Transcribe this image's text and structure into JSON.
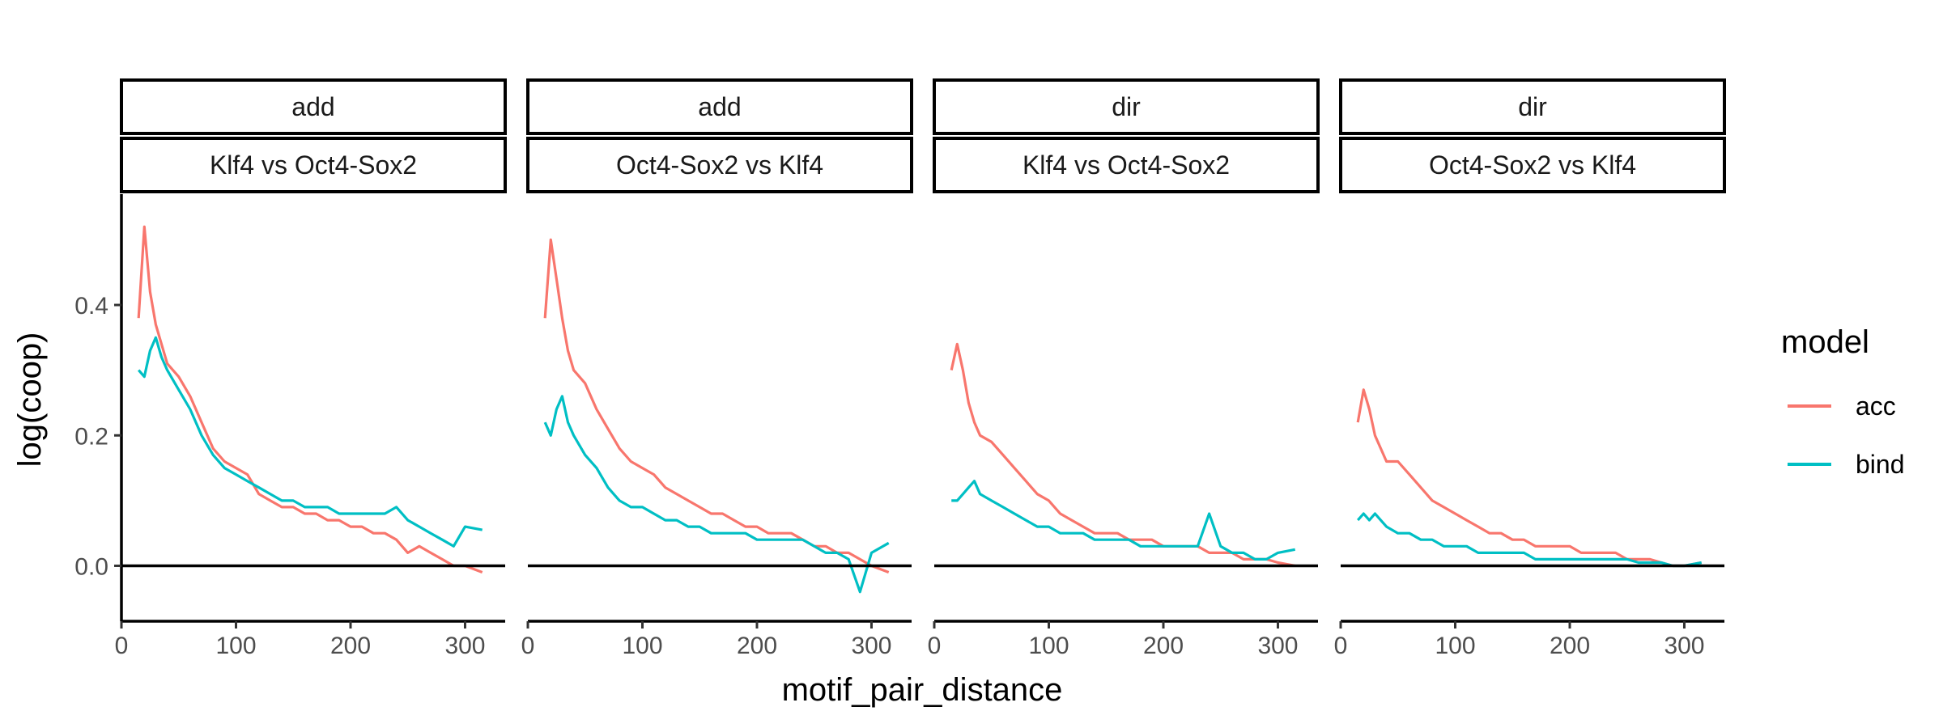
{
  "chart_data": {
    "type": "line",
    "xlabel": "motif_pair_distance",
    "ylabel": "log(coop)",
    "xlim": [
      0,
      335
    ],
    "ylim": [
      -0.085,
      0.57
    ],
    "xticks": [
      "0",
      "100",
      "200",
      "300"
    ],
    "yticks": [
      "0.0",
      "0.2",
      "0.4"
    ],
    "hline": 0,
    "grid": false,
    "legend": {
      "title": "model",
      "position": "right",
      "entries": [
        {
          "name": "acc",
          "color": "#F8766D"
        },
        {
          "name": "bind",
          "color": "#00BFC4"
        }
      ]
    },
    "facets": [
      {
        "strip_top": "add",
        "strip_bottom": "Klf4 vs Oct4-Sox2",
        "series": [
          {
            "name": "acc",
            "color": "#F8766D",
            "x": [
              15,
              20,
              25,
              30,
              35,
              40,
              50,
              60,
              70,
              80,
              90,
              100,
              110,
              120,
              130,
              140,
              150,
              160,
              170,
              180,
              190,
              200,
              210,
              220,
              230,
              240,
              250,
              260,
              270,
              280,
              290,
              300,
              315
            ],
            "y": [
              0.38,
              0.52,
              0.42,
              0.37,
              0.34,
              0.31,
              0.29,
              0.26,
              0.22,
              0.18,
              0.16,
              0.15,
              0.14,
              0.11,
              0.1,
              0.09,
              0.09,
              0.08,
              0.08,
              0.07,
              0.07,
              0.06,
              0.06,
              0.05,
              0.05,
              0.04,
              0.02,
              0.03,
              0.02,
              0.01,
              0,
              0,
              -0.01
            ]
          },
          {
            "name": "bind",
            "color": "#00BFC4",
            "x": [
              15,
              20,
              25,
              30,
              35,
              40,
              50,
              60,
              70,
              80,
              90,
              100,
              110,
              120,
              130,
              140,
              150,
              160,
              170,
              180,
              190,
              200,
              210,
              220,
              230,
              240,
              250,
              260,
              270,
              280,
              290,
              300,
              315
            ],
            "y": [
              0.3,
              0.29,
              0.33,
              0.35,
              0.32,
              0.3,
              0.27,
              0.24,
              0.2,
              0.17,
              0.15,
              0.14,
              0.13,
              0.12,
              0.11,
              0.1,
              0.1,
              0.09,
              0.09,
              0.09,
              0.08,
              0.08,
              0.08,
              0.08,
              0.08,
              0.09,
              0.07,
              0.06,
              0.05,
              0.04,
              0.03,
              0.06,
              0.055
            ]
          }
        ]
      },
      {
        "strip_top": "add",
        "strip_bottom": "Oct4-Sox2 vs Klf4",
        "series": [
          {
            "name": "acc",
            "color": "#F8766D",
            "x": [
              15,
              20,
              25,
              30,
              35,
              40,
              50,
              60,
              70,
              80,
              90,
              100,
              110,
              120,
              130,
              140,
              150,
              160,
              170,
              180,
              190,
              200,
              210,
              220,
              230,
              240,
              250,
              260,
              270,
              280,
              290,
              300,
              315
            ],
            "y": [
              0.38,
              0.5,
              0.44,
              0.38,
              0.33,
              0.3,
              0.28,
              0.24,
              0.21,
              0.18,
              0.16,
              0.15,
              0.14,
              0.12,
              0.11,
              0.1,
              0.09,
              0.08,
              0.08,
              0.07,
              0.06,
              0.06,
              0.05,
              0.05,
              0.05,
              0.04,
              0.03,
              0.03,
              0.02,
              0.02,
              0.01,
              0,
              -0.01
            ]
          },
          {
            "name": "bind",
            "color": "#00BFC4",
            "x": [
              15,
              20,
              25,
              30,
              35,
              40,
              50,
              60,
              70,
              80,
              90,
              100,
              110,
              120,
              130,
              140,
              150,
              160,
              170,
              180,
              190,
              200,
              210,
              220,
              230,
              240,
              250,
              260,
              270,
              280,
              290,
              300,
              315
            ],
            "y": [
              0.22,
              0.2,
              0.24,
              0.26,
              0.22,
              0.2,
              0.17,
              0.15,
              0.12,
              0.1,
              0.09,
              0.09,
              0.08,
              0.07,
              0.07,
              0.06,
              0.06,
              0.05,
              0.05,
              0.05,
              0.05,
              0.04,
              0.04,
              0.04,
              0.04,
              0.04,
              0.03,
              0.02,
              0.02,
              0.01,
              -0.04,
              0.02,
              0.035
            ]
          }
        ]
      },
      {
        "strip_top": "dir",
        "strip_bottom": "Klf4 vs Oct4-Sox2",
        "series": [
          {
            "name": "acc",
            "color": "#F8766D",
            "x": [
              15,
              20,
              25,
              30,
              35,
              40,
              50,
              60,
              70,
              80,
              90,
              100,
              110,
              120,
              130,
              140,
              150,
              160,
              170,
              180,
              190,
              200,
              210,
              220,
              230,
              240,
              250,
              260,
              270,
              280,
              290,
              300,
              315
            ],
            "y": [
              0.3,
              0.34,
              0.3,
              0.25,
              0.22,
              0.2,
              0.19,
              0.17,
              0.15,
              0.13,
              0.11,
              0.1,
              0.08,
              0.07,
              0.06,
              0.05,
              0.05,
              0.05,
              0.04,
              0.04,
              0.04,
              0.03,
              0.03,
              0.03,
              0.03,
              0.02,
              0.02,
              0.02,
              0.01,
              0.01,
              0.01,
              0.005,
              0
            ]
          },
          {
            "name": "bind",
            "color": "#00BFC4",
            "x": [
              15,
              20,
              25,
              30,
              35,
              40,
              50,
              60,
              70,
              80,
              90,
              100,
              110,
              120,
              130,
              140,
              150,
              160,
              170,
              180,
              190,
              200,
              210,
              220,
              230,
              240,
              250,
              260,
              270,
              280,
              290,
              300,
              315
            ],
            "y": [
              0.1,
              0.1,
              0.11,
              0.12,
              0.13,
              0.11,
              0.1,
              0.09,
              0.08,
              0.07,
              0.06,
              0.06,
              0.05,
              0.05,
              0.05,
              0.04,
              0.04,
              0.04,
              0.04,
              0.03,
              0.03,
              0.03,
              0.03,
              0.03,
              0.03,
              0.08,
              0.03,
              0.02,
              0.02,
              0.01,
              0.01,
              0.02,
              0.025
            ]
          }
        ]
      },
      {
        "strip_top": "dir",
        "strip_bottom": "Oct4-Sox2 vs Klf4",
        "series": [
          {
            "name": "acc",
            "color": "#F8766D",
            "x": [
              15,
              20,
              25,
              30,
              35,
              40,
              50,
              60,
              70,
              80,
              90,
              100,
              110,
              120,
              130,
              140,
              150,
              160,
              170,
              180,
              190,
              200,
              210,
              220,
              230,
              240,
              250,
              260,
              270,
              280,
              290,
              300,
              315
            ],
            "y": [
              0.22,
              0.27,
              0.24,
              0.2,
              0.18,
              0.16,
              0.16,
              0.14,
              0.12,
              0.1,
              0.09,
              0.08,
              0.07,
              0.06,
              0.05,
              0.05,
              0.04,
              0.04,
              0.03,
              0.03,
              0.03,
              0.03,
              0.02,
              0.02,
              0.02,
              0.02,
              0.01,
              0.01,
              0.01,
              0.005,
              0,
              0,
              0.005
            ]
          },
          {
            "name": "bind",
            "color": "#00BFC4",
            "x": [
              15,
              20,
              25,
              30,
              35,
              40,
              50,
              60,
              70,
              80,
              90,
              100,
              110,
              120,
              130,
              140,
              150,
              160,
              170,
              180,
              190,
              200,
              210,
              220,
              230,
              240,
              250,
              260,
              270,
              280,
              290,
              300,
              315
            ],
            "y": [
              0.07,
              0.08,
              0.07,
              0.08,
              0.07,
              0.06,
              0.05,
              0.05,
              0.04,
              0.04,
              0.03,
              0.03,
              0.03,
              0.02,
              0.02,
              0.02,
              0.02,
              0.02,
              0.01,
              0.01,
              0.01,
              0.01,
              0.01,
              0.01,
              0.01,
              0.01,
              0.01,
              0.005,
              0.005,
              0.005,
              0,
              0,
              0.005
            ]
          }
        ]
      }
    ]
  }
}
